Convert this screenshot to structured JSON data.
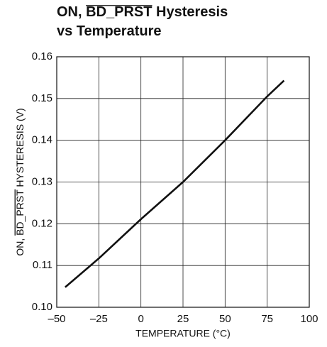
{
  "chart_data": {
    "type": "line",
    "title": [
      [
        "ON, ",
        "BD_PRST",
        " Hysteresis"
      ],
      [
        "vs Temperature"
      ]
    ],
    "ylabel": [
      "ON, ",
      "BD_PRST",
      " HYSTERESIS (V)"
    ],
    "xlabel": "TEMPERATURE (°C)",
    "x": [
      -45,
      -25,
      0,
      25,
      50,
      75,
      85
    ],
    "series": [
      {
        "color": "#111111",
        "values": [
          0.1048,
          0.1117,
          0.1211,
          0.13,
          0.14,
          0.1505,
          0.1543
        ]
      }
    ],
    "xlim": [
      -50,
      100
    ],
    "xticks": [
      {
        "value": -50,
        "label": "–50"
      },
      {
        "value": -25,
        "label": "–25"
      },
      0,
      25,
      50,
      75,
      100
    ],
    "ylim": [
      0.1,
      0.16
    ],
    "yticks": [
      {
        "value": 0.1,
        "label": "0.10"
      },
      0.11,
      0.12,
      0.13,
      0.14,
      0.15,
      0.16
    ],
    "grid": true
  }
}
